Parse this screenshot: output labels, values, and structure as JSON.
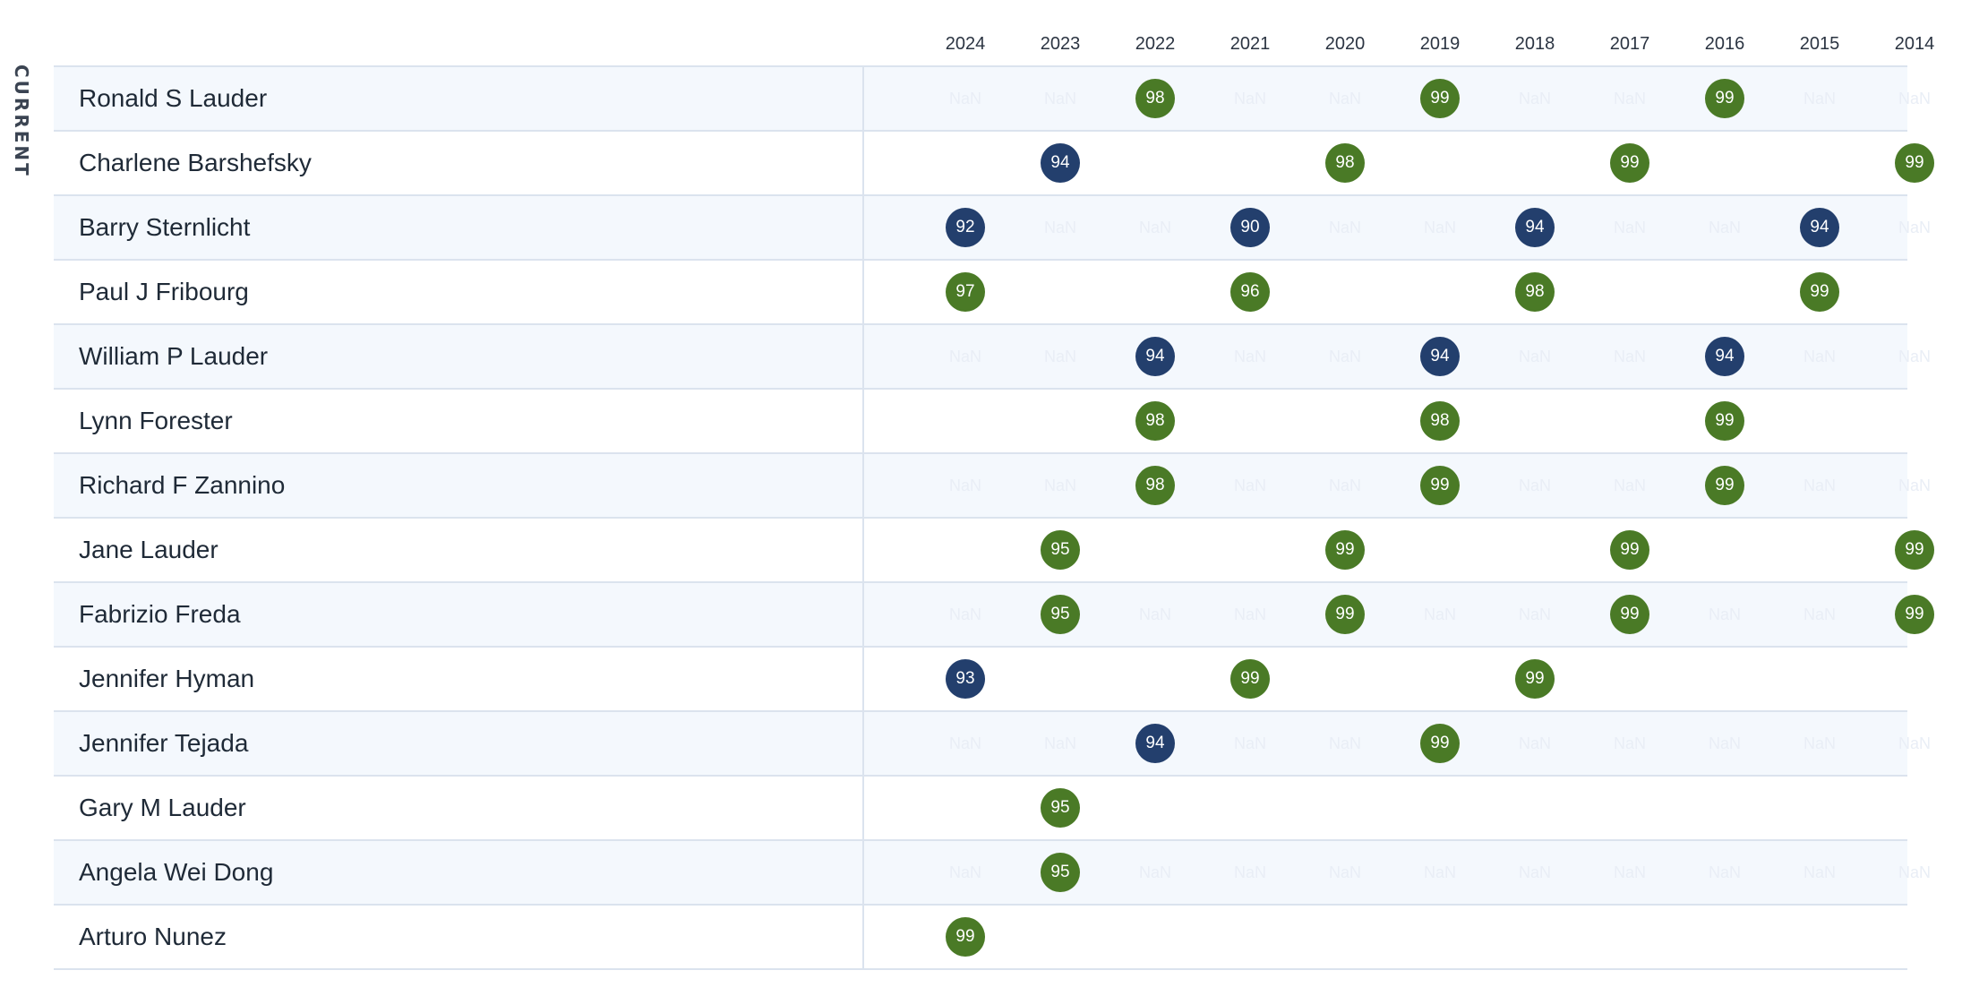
{
  "side_label": "CURRENT",
  "chart_data": {
    "type": "table",
    "years": [
      "2024",
      "2023",
      "2022",
      "2021",
      "2020",
      "2019",
      "2018",
      "2017",
      "2016",
      "2015",
      "2014"
    ],
    "colors": {
      "green": "#4a7a26",
      "blue": "#233f6d"
    },
    "rows": [
      {
        "name": "Ronald S Lauder",
        "cells": [
          "NaN",
          "NaN",
          {
            "v": "98",
            "c": "green"
          },
          "NaN",
          "NaN",
          {
            "v": "99",
            "c": "green"
          },
          "NaN",
          "NaN",
          {
            "v": "99",
            "c": "green"
          },
          "NaN",
          "NaN"
        ]
      },
      {
        "name": "Charlene Barshefsky",
        "cells": [
          null,
          {
            "v": "94",
            "c": "blue"
          },
          null,
          null,
          {
            "v": "98",
            "c": "green"
          },
          null,
          null,
          {
            "v": "99",
            "c": "green"
          },
          null,
          null,
          {
            "v": "99",
            "c": "green"
          }
        ]
      },
      {
        "name": "Barry Sternlicht",
        "cells": [
          {
            "v": "92",
            "c": "blue"
          },
          "NaN",
          "NaN",
          {
            "v": "90",
            "c": "blue"
          },
          "NaN",
          "NaN",
          {
            "v": "94",
            "c": "blue"
          },
          "NaN",
          "NaN",
          {
            "v": "94",
            "c": "blue"
          },
          "NaN"
        ]
      },
      {
        "name": "Paul J Fribourg",
        "cells": [
          {
            "v": "97",
            "c": "green"
          },
          null,
          null,
          {
            "v": "96",
            "c": "green"
          },
          null,
          null,
          {
            "v": "98",
            "c": "green"
          },
          null,
          null,
          {
            "v": "99",
            "c": "green"
          },
          null
        ]
      },
      {
        "name": "William P Lauder",
        "cells": [
          "NaN",
          "NaN",
          {
            "v": "94",
            "c": "blue"
          },
          "NaN",
          "NaN",
          {
            "v": "94",
            "c": "blue"
          },
          "NaN",
          "NaN",
          {
            "v": "94",
            "c": "blue"
          },
          "NaN",
          "NaN"
        ]
      },
      {
        "name": "Lynn Forester",
        "cells": [
          null,
          null,
          {
            "v": "98",
            "c": "green"
          },
          null,
          null,
          {
            "v": "98",
            "c": "green"
          },
          null,
          null,
          {
            "v": "99",
            "c": "green"
          },
          null,
          null
        ]
      },
      {
        "name": "Richard F Zannino",
        "cells": [
          "NaN",
          "NaN",
          {
            "v": "98",
            "c": "green"
          },
          "NaN",
          "NaN",
          {
            "v": "99",
            "c": "green"
          },
          "NaN",
          "NaN",
          {
            "v": "99",
            "c": "green"
          },
          "NaN",
          "NaN"
        ]
      },
      {
        "name": "Jane Lauder",
        "cells": [
          null,
          {
            "v": "95",
            "c": "green"
          },
          null,
          null,
          {
            "v": "99",
            "c": "green"
          },
          null,
          null,
          {
            "v": "99",
            "c": "green"
          },
          null,
          null,
          {
            "v": "99",
            "c": "green"
          }
        ]
      },
      {
        "name": "Fabrizio Freda",
        "cells": [
          "NaN",
          {
            "v": "95",
            "c": "green"
          },
          "NaN",
          "NaN",
          {
            "v": "99",
            "c": "green"
          },
          "NaN",
          "NaN",
          {
            "v": "99",
            "c": "green"
          },
          "NaN",
          "NaN",
          {
            "v": "99",
            "c": "green"
          }
        ]
      },
      {
        "name": "Jennifer Hyman",
        "cells": [
          {
            "v": "93",
            "c": "blue"
          },
          null,
          null,
          {
            "v": "99",
            "c": "green"
          },
          null,
          null,
          {
            "v": "99",
            "c": "green"
          },
          null,
          null,
          null,
          null
        ]
      },
      {
        "name": "Jennifer Tejada",
        "cells": [
          "NaN",
          "NaN",
          {
            "v": "94",
            "c": "blue"
          },
          "NaN",
          "NaN",
          {
            "v": "99",
            "c": "green"
          },
          "NaN",
          "NaN",
          "NaN",
          "NaN",
          "NaN"
        ]
      },
      {
        "name": "Gary M Lauder",
        "cells": [
          null,
          {
            "v": "95",
            "c": "green"
          },
          null,
          null,
          null,
          null,
          null,
          null,
          null,
          null,
          null
        ]
      },
      {
        "name": "Angela Wei Dong",
        "cells": [
          "NaN",
          {
            "v": "95",
            "c": "green"
          },
          "NaN",
          "NaN",
          "NaN",
          "NaN",
          "NaN",
          "NaN",
          "NaN",
          "NaN",
          "NaN"
        ]
      },
      {
        "name": "Arturo Nunez",
        "cells": [
          {
            "v": "99",
            "c": "green"
          },
          null,
          null,
          null,
          null,
          null,
          null,
          null,
          null,
          null,
          null
        ]
      }
    ]
  }
}
